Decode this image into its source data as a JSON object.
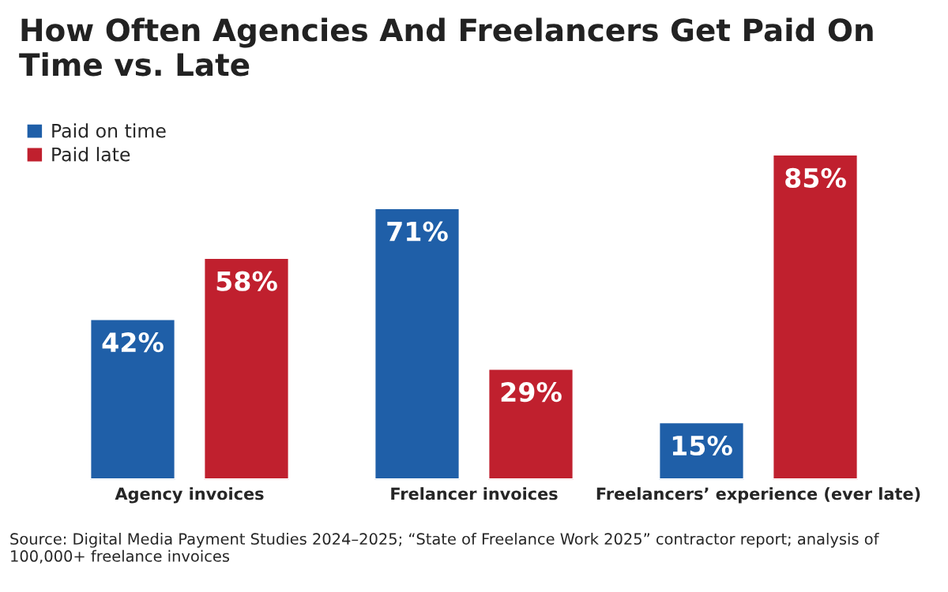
{
  "chart_data": {
    "type": "bar",
    "title": "How Often Agencies And Freelancers Get Paid On Time vs. Late",
    "categories": [
      "Agency invoices",
      "Frelancer invoices",
      "Freelancers’ experience (ever late)"
    ],
    "series": [
      {
        "name": "Paid on time",
        "color": "#1f5fa8",
        "values": [
          42,
          71,
          15
        ],
        "value_labels": [
          "42%",
          "71%",
          "15%"
        ]
      },
      {
        "name": "Paid late",
        "color": "#c0202e",
        "values": [
          58,
          29,
          85
        ],
        "value_labels": [
          "58%",
          "29%",
          "85%"
        ]
      }
    ],
    "legend": "top left",
    "annotations": [
      "Source: Digital Media Payment Studies 2024–2025; “State of Freelance Work 2025” contractor report; analysis of 100,000+ freelance invoices"
    ]
  }
}
